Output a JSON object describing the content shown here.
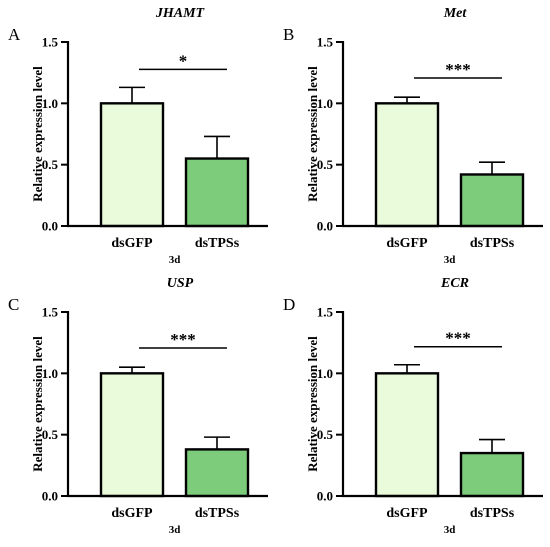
{
  "chart_data": [
    {
      "type": "bar",
      "panel": "A",
      "title": "JHAMT",
      "categories": [
        "dsGFP",
        "dsTPSs"
      ],
      "values": [
        1.0,
        0.55
      ],
      "errors": [
        0.13,
        0.18
      ],
      "xlabel": "3d",
      "ylabel": "Relative expression level",
      "ylim": [
        0,
        1.5
      ],
      "yticks": [
        "0.0",
        "0.5",
        "1.0",
        "1.5"
      ],
      "significance": "*",
      "colors": [
        "#eafbdb",
        "#7ccc7c"
      ]
    },
    {
      "type": "bar",
      "panel": "B",
      "title": "Met",
      "categories": [
        "dsGFP",
        "dsTPSs"
      ],
      "values": [
        1.0,
        0.42
      ],
      "errors": [
        0.05,
        0.1
      ],
      "xlabel": "3d",
      "ylabel": "Relative expression level",
      "ylim": [
        0,
        1.5
      ],
      "yticks": [
        "0.0",
        "0.5",
        "1.0",
        "1.5"
      ],
      "significance": "***",
      "colors": [
        "#eafbdb",
        "#7ccc7c"
      ]
    },
    {
      "type": "bar",
      "panel": "C",
      "title": "USP",
      "categories": [
        "dsGFP",
        "dsTPSs"
      ],
      "values": [
        1.0,
        0.38
      ],
      "errors": [
        0.05,
        0.1
      ],
      "xlabel": "3d",
      "ylabel": "Relative expression level",
      "ylim": [
        0,
        1.5
      ],
      "yticks": [
        "0.0",
        "0.5",
        "1.0",
        "1.5"
      ],
      "significance": "***",
      "colors": [
        "#eafbdb",
        "#7ccc7c"
      ]
    },
    {
      "type": "bar",
      "panel": "D",
      "title": "ECR",
      "categories": [
        "dsGFP",
        "dsTPSs"
      ],
      "values": [
        1.0,
        0.35
      ],
      "errors": [
        0.07,
        0.11
      ],
      "xlabel": "3d",
      "ylabel": "Relative expression level",
      "ylim": [
        0,
        1.5
      ],
      "yticks": [
        "0.0",
        "0.5",
        "1.0",
        "1.5"
      ],
      "significance": "***",
      "colors": [
        "#eafbdb",
        "#7ccc7c"
      ]
    }
  ]
}
